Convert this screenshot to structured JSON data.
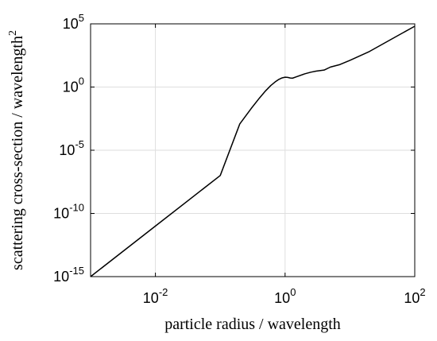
{
  "chart_data": {
    "type": "line",
    "title": "",
    "xlabel": "particle radius / wavelength",
    "ylabel": "scattering cross-section / wavelength",
    "ylabel_superscript": "2",
    "xscale": "log",
    "yscale": "log",
    "xlim": [
      0.001,
      100
    ],
    "ylim": [
      1e-15,
      100000
    ],
    "grid": true,
    "x_ticks": [
      {
        "value": 0.01,
        "base": "10",
        "exp": "-2"
      },
      {
        "value": 1,
        "base": "10",
        "exp": "0"
      },
      {
        "value": 100,
        "base": "10",
        "exp": "2"
      }
    ],
    "y_ticks": [
      {
        "value": 1e-15,
        "base": "10",
        "exp": "-15"
      },
      {
        "value": 1e-10,
        "base": "10",
        "exp": "-10"
      },
      {
        "value": 1e-05,
        "base": "10",
        "exp": "-5"
      },
      {
        "value": 1,
        "base": "10",
        "exp": "0"
      },
      {
        "value": 100000,
        "base": "10",
        "exp": "5"
      }
    ],
    "series": [
      {
        "color": "#000000",
        "x": [
          0.001,
          0.01,
          0.1,
          0.2,
          0.3,
          0.4,
          0.5,
          0.6,
          0.7,
          0.8,
          0.9,
          1.0,
          1.1,
          1.2,
          1.3,
          1.5,
          2.0,
          2.5,
          3.0,
          4.0,
          5.0,
          7.0,
          10,
          20,
          50,
          100
        ],
        "y": [
          1e-15,
          1e-11,
          1e-07,
          0.0012,
          0.02,
          0.13,
          0.5,
          1.3,
          2.5,
          4.0,
          5.3,
          6.0,
          5.8,
          5.2,
          5.0,
          6.5,
          11,
          15,
          18,
          22,
          38,
          60,
          130,
          650,
          9000,
          65000
        ]
      }
    ]
  }
}
